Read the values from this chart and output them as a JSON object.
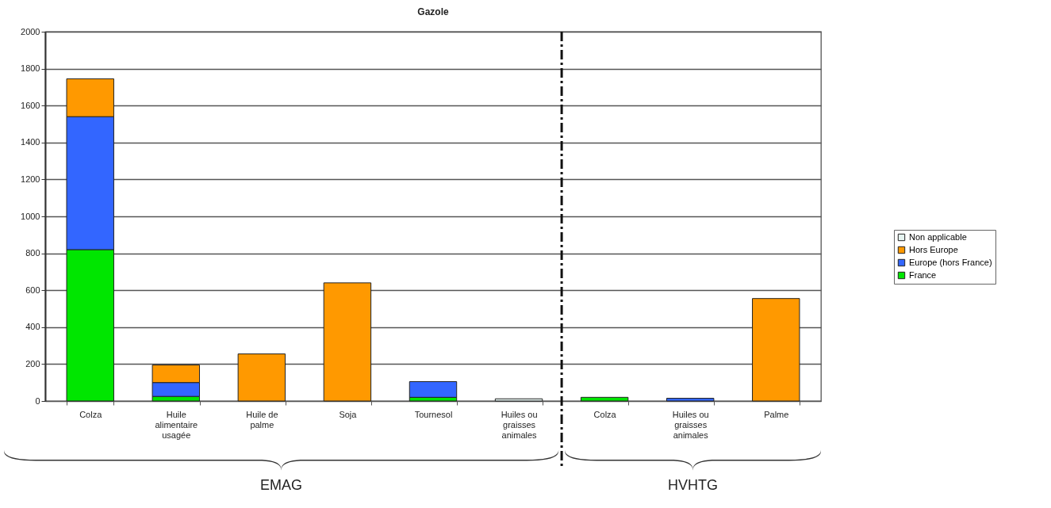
{
  "chart_data": {
    "type": "bar",
    "title": "Gazole",
    "stacked": true,
    "categories": [
      "Colza",
      "Huile alimentaire usagée",
      "Huile de palme",
      "Soja",
      "Tournesol",
      "Huiles ou graisses animales",
      "Colza",
      "Huiles ou graisses animales",
      "Palme"
    ],
    "series": [
      {
        "name": "France",
        "color": "#00e600",
        "values": [
          820,
          25,
          null,
          null,
          20,
          null,
          20,
          null,
          null
        ]
      },
      {
        "name": "Europe (hors France)",
        "color": "#3366ff",
        "values": [
          720,
          75,
          null,
          null,
          85,
          null,
          null,
          15,
          null
        ]
      },
      {
        "name": "Hors Europe",
        "color": "#ff9900",
        "values": [
          205,
          95,
          255,
          640,
          null,
          null,
          null,
          null,
          555
        ]
      },
      {
        "name": "Non applicable",
        "color": "#e6f4f1",
        "values": [
          null,
          null,
          null,
          null,
          null,
          12,
          null,
          null,
          null
        ]
      }
    ],
    "ylim": [
      0,
      2000
    ],
    "yticks": [
      0,
      200,
      400,
      600,
      800,
      1000,
      1200,
      1400,
      1600,
      1800,
      2000
    ],
    "grid": "y",
    "legend": "right",
    "annotations": [
      "EMAG",
      "HVHTG"
    ]
  }
}
